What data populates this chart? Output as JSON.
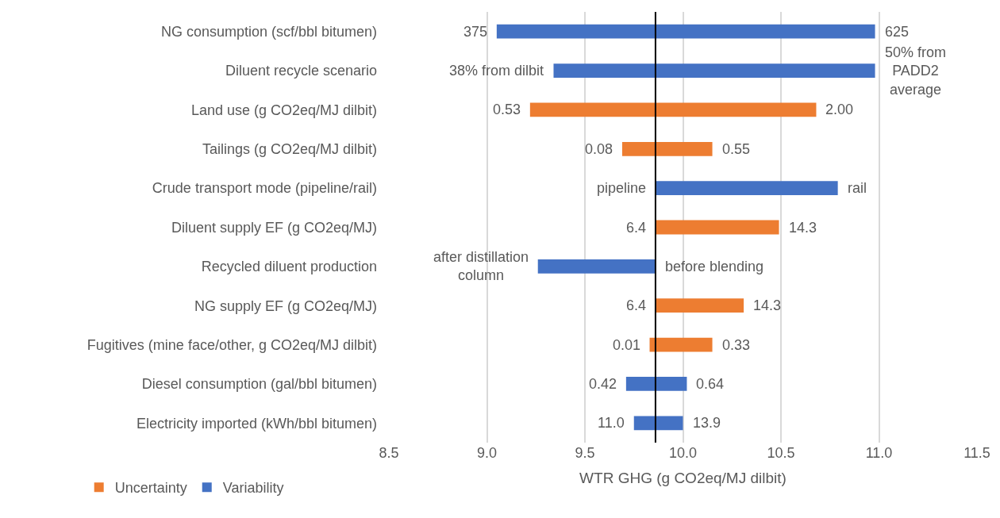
{
  "chart_data": {
    "type": "bar",
    "orientation": "horizontal",
    "xlabel": "WTR GHG (g CO2eq/MJ dilbit)",
    "categories": [
      "NG consumption (scf/bbl bitumen)",
      "Diluent recycle scenario",
      "Land use (g CO2eq/MJ dilbit)",
      "Tailings (g CO2eq/MJ dilbit)",
      "Crude transport mode (pipeline/rail)",
      "Diluent supply EF (g CO2eq/MJ)",
      "Recycled diluent production",
      "NG supply EF (g CO2eq/MJ)",
      "Fugitives (mine face/other, g CO2eq/MJ dilbit)",
      "Diesel consumption (gal/bbl bitumen)",
      "Electricity imported (kWh/bbl bitumen)"
    ],
    "series": [
      {
        "name": "Uncertainty",
        "color": "#ed7d31",
        "values": [
          null,
          null,
          1.46,
          0.46,
          null,
          0.63,
          null,
          0.45,
          0.32,
          null,
          null
        ],
        "base": [
          null,
          null,
          9.22,
          9.69,
          null,
          9.86,
          null,
          9.86,
          9.83,
          null,
          null
        ]
      },
      {
        "name": "Variability",
        "color": "#4472c4",
        "values": [
          1.93,
          1.64,
          null,
          null,
          0.93,
          null,
          0.6,
          null,
          null,
          0.31,
          0.25
        ],
        "base": [
          9.05,
          9.34,
          null,
          null,
          9.86,
          null,
          9.26,
          null,
          null,
          9.71,
          9.75
        ]
      }
    ],
    "xlim": [
      8.5,
      11.5
    ],
    "xticks": [
      {
        "value": 8.5,
        "label": "8.5"
      },
      {
        "value": 9,
        "label": "9.0"
      },
      {
        "value": 9.5,
        "label": "9.5"
      },
      {
        "value": 10,
        "label": "10.0"
      },
      {
        "value": 10.5,
        "label": "10.5"
      },
      {
        "value": 11,
        "label": "11.0"
      },
      {
        "value": 11.5,
        "label": "11.5"
      }
    ],
    "ref_lines": [
      {
        "axis": "x",
        "value": 9.86,
        "color": "#000000"
      }
    ],
    "grid": "x",
    "legend": "bottom left",
    "annotations": [
      {
        "text": "375",
        "x": 9.05,
        "y": "NG consumption (scf/bbl bitumen)"
      },
      {
        "text": "625",
        "x": 10.98,
        "y": "NG consumption (scf/bbl bitumen)"
      },
      {
        "text": "38% from dilbit",
        "x": 9.34,
        "y": "Diluent recycle scenario"
      },
      {
        "text": "50% from\nPADD2\naverage",
        "x": 10.98,
        "y": "Diluent recycle scenario"
      },
      {
        "text": "0.53",
        "x": 9.22,
        "y": "Land use (g CO2eq/MJ dilbit)"
      },
      {
        "text": "2.00",
        "x": 10.68,
        "y": "Land use (g CO2eq/MJ dilbit)"
      },
      {
        "text": "0.08",
        "x": 9.69,
        "y": "Tailings (g CO2eq/MJ dilbit)"
      },
      {
        "text": "0.55",
        "x": 10.15,
        "y": "Tailings (g CO2eq/MJ dilbit)"
      },
      {
        "text": "pipeline",
        "x": 9.86,
        "y": "Crude transport mode (pipeline/rail)"
      },
      {
        "text": "rail",
        "x": 10.79,
        "y": "Crude transport mode (pipeline/rail)"
      },
      {
        "text": "6.4",
        "x": 9.86,
        "y": "Diluent supply EF (g CO2eq/MJ)"
      },
      {
        "text": "14.3",
        "x": 10.49,
        "y": "Diluent supply EF (g CO2eq/MJ)"
      },
      {
        "text": "after distillation\ncolumn",
        "x": 9.26,
        "y": "Recycled diluent production"
      },
      {
        "text": "before blending",
        "x": 9.86,
        "y": "Recycled diluent production"
      },
      {
        "text": "6.4",
        "x": 9.86,
        "y": "NG supply EF (g CO2eq/MJ)"
      },
      {
        "text": "14.3",
        "x": 10.31,
        "y": "NG supply EF (g CO2eq/MJ)"
      },
      {
        "text": "0.01",
        "x": 9.83,
        "y": "Fugitives (mine face/other, g CO2eq/MJ dilbit)"
      },
      {
        "text": "0.33",
        "x": 10.15,
        "y": "Fugitives (mine face/other, g CO2eq/MJ dilbit)"
      },
      {
        "text": "0.42",
        "x": 9.71,
        "y": "Diesel consumption (gal/bbl bitumen)"
      },
      {
        "text": "0.64",
        "x": 10.02,
        "y": "Diesel consumption (gal/bbl bitumen)"
      },
      {
        "text": "11.0",
        "x": 9.75,
        "y": "Electricity imported (kWh/bbl bitumen)"
      },
      {
        "text": "13.9",
        "x": 10.0,
        "y": "Electricity imported (kWh/bbl bitumen)"
      }
    ]
  }
}
